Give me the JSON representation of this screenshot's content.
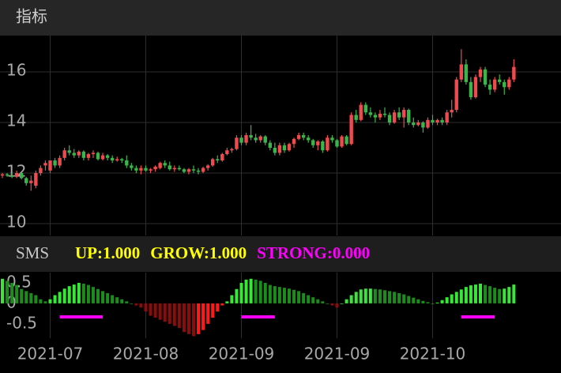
{
  "chart_data": {
    "type": "candlestick",
    "title": "指标",
    "ylim": [
      9.53,
      17.44
    ],
    "yticks": [
      10,
      12,
      14,
      16
    ],
    "grid": true,
    "up_color": "#ef4a4e",
    "down_color": "#3bb54a",
    "xticks": [
      {
        "value": 10,
        "label": "2021-07"
      },
      {
        "value": 30,
        "label": "2021-08"
      },
      {
        "value": 50,
        "label": "2021-09"
      },
      {
        "value": 70,
        "label": "2021-09"
      },
      {
        "value": 90,
        "label": "2021-10"
      }
    ],
    "candles": [
      [
        11.9,
        12.0,
        11.8,
        11.95
      ],
      [
        11.95,
        12.0,
        11.85,
        11.9
      ],
      [
        11.9,
        12.0,
        11.8,
        11.85
      ],
      [
        11.85,
        12.1,
        11.8,
        12.0
      ],
      [
        12.0,
        12.0,
        11.75,
        11.8
      ],
      [
        11.8,
        11.85,
        11.5,
        11.6
      ],
      [
        11.6,
        11.9,
        11.3,
        11.7
      ],
      [
        11.5,
        12.1,
        11.4,
        12.0
      ],
      [
        12.0,
        12.3,
        11.9,
        12.2
      ],
      [
        12.3,
        12.5,
        12.1,
        12.4
      ],
      [
        12.1,
        12.5,
        12.0,
        12.5
      ],
      [
        12.5,
        12.6,
        12.2,
        12.3
      ],
      [
        12.3,
        12.7,
        12.2,
        12.6
      ],
      [
        12.6,
        13.0,
        12.5,
        12.9
      ],
      [
        12.9,
        13.1,
        12.7,
        12.8
      ],
      [
        12.8,
        12.95,
        12.6,
        12.7
      ],
      [
        12.7,
        12.9,
        12.6,
        12.85
      ],
      [
        12.85,
        12.9,
        12.5,
        12.6
      ],
      [
        12.6,
        12.8,
        12.5,
        12.75
      ],
      [
        12.75,
        12.9,
        12.6,
        12.8
      ],
      [
        12.8,
        12.85,
        12.5,
        12.55
      ],
      [
        12.55,
        12.8,
        12.5,
        12.7
      ],
      [
        12.7,
        12.75,
        12.5,
        12.6
      ],
      [
        12.6,
        12.7,
        12.4,
        12.5
      ],
      [
        12.5,
        12.65,
        12.45,
        12.55
      ],
      [
        12.55,
        12.6,
        12.4,
        12.5
      ],
      [
        12.5,
        12.7,
        12.2,
        12.3
      ],
      [
        12.3,
        12.4,
        12.1,
        12.2
      ],
      [
        12.2,
        12.3,
        12.0,
        12.1
      ],
      [
        12.1,
        12.3,
        11.95,
        12.2
      ],
      [
        12.2,
        12.3,
        12.05,
        12.1
      ],
      [
        12.1,
        12.2,
        12.0,
        12.15
      ],
      [
        12.15,
        12.3,
        12.05,
        12.25
      ],
      [
        12.2,
        12.45,
        12.15,
        12.4
      ],
      [
        12.4,
        12.5,
        12.2,
        12.3
      ],
      [
        12.3,
        12.45,
        12.1,
        12.15
      ],
      [
        12.15,
        12.3,
        12.05,
        12.2
      ],
      [
        12.2,
        12.3,
        12.1,
        12.15
      ],
      [
        12.15,
        12.2,
        12.0,
        12.05
      ],
      [
        12.05,
        12.2,
        11.95,
        12.15
      ],
      [
        12.15,
        12.3,
        12.0,
        12.1
      ],
      [
        12.1,
        12.2,
        11.95,
        12.05
      ],
      [
        12.05,
        12.25,
        12.0,
        12.2
      ],
      [
        12.2,
        12.35,
        12.1,
        12.3
      ],
      [
        12.3,
        12.6,
        12.25,
        12.55
      ],
      [
        12.55,
        12.7,
        12.4,
        12.5
      ],
      [
        12.5,
        12.8,
        12.45,
        12.75
      ],
      [
        12.75,
        13.0,
        12.7,
        12.9
      ],
      [
        12.9,
        13.0,
        12.8,
        12.95
      ],
      [
        12.95,
        13.5,
        12.9,
        13.4
      ],
      [
        13.4,
        13.5,
        13.1,
        13.2
      ],
      [
        13.2,
        13.6,
        13.1,
        13.5
      ],
      [
        13.5,
        13.9,
        13.3,
        13.4
      ],
      [
        13.4,
        13.55,
        13.2,
        13.3
      ],
      [
        13.3,
        13.5,
        13.2,
        13.45
      ],
      [
        13.45,
        13.5,
        13.1,
        13.2
      ],
      [
        13.2,
        13.3,
        12.9,
        13.0
      ],
      [
        13.0,
        13.2,
        12.7,
        12.8
      ],
      [
        12.8,
        13.2,
        12.7,
        13.1
      ],
      [
        13.1,
        13.2,
        12.8,
        12.9
      ],
      [
        12.9,
        13.2,
        12.85,
        13.15
      ],
      [
        13.15,
        13.4,
        13.0,
        13.35
      ],
      [
        13.35,
        13.6,
        13.3,
        13.5
      ],
      [
        13.5,
        13.6,
        13.3,
        13.4
      ],
      [
        13.4,
        13.5,
        13.2,
        13.3
      ],
      [
        13.3,
        13.35,
        13.0,
        13.1
      ],
      [
        13.1,
        13.3,
        12.9,
        13.25
      ],
      [
        13.25,
        13.3,
        12.8,
        12.9
      ],
      [
        12.9,
        13.5,
        12.85,
        13.4
      ],
      [
        13.4,
        13.5,
        13.2,
        13.3
      ],
      [
        13.3,
        13.35,
        13.0,
        13.05
      ],
      [
        13.05,
        13.5,
        13.0,
        13.45
      ],
      [
        13.45,
        13.5,
        13.1,
        13.15
      ],
      [
        13.15,
        14.4,
        13.1,
        14.3
      ],
      [
        14.3,
        14.5,
        14.0,
        14.1
      ],
      [
        14.1,
        14.8,
        14.05,
        14.7
      ],
      [
        14.7,
        14.8,
        14.3,
        14.4
      ],
      [
        14.4,
        14.6,
        14.2,
        14.3
      ],
      [
        14.3,
        14.4,
        14.0,
        14.2
      ],
      [
        14.2,
        14.5,
        14.1,
        14.35
      ],
      [
        14.35,
        14.6,
        14.2,
        14.3
      ],
      [
        14.3,
        14.4,
        13.9,
        14.0
      ],
      [
        14.0,
        14.5,
        13.95,
        14.4
      ],
      [
        14.4,
        14.6,
        14.1,
        14.2
      ],
      [
        14.2,
        14.6,
        13.8,
        14.5
      ],
      [
        14.5,
        14.55,
        13.9,
        14.0
      ],
      [
        14.0,
        14.2,
        13.8,
        13.9
      ],
      [
        13.9,
        14.1,
        13.85,
        14.0
      ],
      [
        14.0,
        14.05,
        13.6,
        13.8
      ],
      [
        13.8,
        14.2,
        13.75,
        14.1
      ],
      [
        14.1,
        14.3,
        13.9,
        14.0
      ],
      [
        14.0,
        14.15,
        13.9,
        14.1
      ],
      [
        14.1,
        14.2,
        13.9,
        14.0
      ],
      [
        14.0,
        14.5,
        13.9,
        14.4
      ],
      [
        14.4,
        14.9,
        14.2,
        14.5
      ],
      [
        14.5,
        15.8,
        14.4,
        15.7
      ],
      [
        15.7,
        16.9,
        15.6,
        16.3
      ],
      [
        16.3,
        16.5,
        15.5,
        15.6
      ],
      [
        15.6,
        15.8,
        14.9,
        15.0
      ],
      [
        15.0,
        15.9,
        14.95,
        15.8
      ],
      [
        15.8,
        16.2,
        15.6,
        16.1
      ],
      [
        16.1,
        16.2,
        15.4,
        15.5
      ],
      [
        15.5,
        15.7,
        15.1,
        15.3
      ],
      [
        15.3,
        15.8,
        15.2,
        15.7
      ],
      [
        15.7,
        15.9,
        15.5,
        15.6
      ],
      [
        15.6,
        15.7,
        15.1,
        15.4
      ],
      [
        15.4,
        15.8,
        15.3,
        15.7
      ],
      [
        15.7,
        16.5,
        15.6,
        16.2
      ]
    ],
    "indicator": {
      "name": "SMS",
      "readouts": [
        {
          "text": "UP:1.000",
          "color": "#ffff00"
        },
        {
          "text": "GROW:1.000",
          "color": "#ffff00"
        },
        {
          "text": "STRONG:0.000",
          "color": "#ff00ff"
        }
      ],
      "ylim": [
        -0.85,
        0.75
      ],
      "yticks": [
        0.5,
        0,
        -0.5
      ],
      "rise_color": "#39e639",
      "fall_color": "#1c8c1c",
      "neg_rise_color": "#ff1a1a",
      "neg_fall_color": "#8c0c0c",
      "values": [
        0.6,
        0.55,
        0.5,
        0.45,
        0.35,
        0.3,
        0.25,
        0.2,
        0.1,
        0.05,
        0.1,
        0.2,
        0.28,
        0.36,
        0.42,
        0.46,
        0.5,
        0.48,
        0.45,
        0.4,
        0.35,
        0.3,
        0.25,
        0.2,
        0.15,
        0.1,
        0.05,
        0.0,
        -0.05,
        -0.1,
        -0.2,
        -0.3,
        -0.35,
        -0.4,
        -0.45,
        -0.5,
        -0.55,
        -0.6,
        -0.7,
        -0.75,
        -0.8,
        -0.75,
        -0.65,
        -0.5,
        -0.35,
        -0.2,
        -0.05,
        0.05,
        0.2,
        0.35,
        0.5,
        0.58,
        0.6,
        0.58,
        0.55,
        0.5,
        0.45,
        0.42,
        0.4,
        0.38,
        0.36,
        0.33,
        0.3,
        0.25,
        0.2,
        0.15,
        0.1,
        0.05,
        0.0,
        -0.05,
        -0.1,
        0.0,
        0.1,
        0.2,
        0.28,
        0.34,
        0.36,
        0.36,
        0.35,
        0.34,
        0.32,
        0.3,
        0.28,
        0.25,
        0.22,
        0.18,
        0.14,
        0.1,
        0.06,
        0.03,
        0.0,
        0.02,
        0.08,
        0.15,
        0.22,
        0.28,
        0.34,
        0.4,
        0.44,
        0.46,
        0.48,
        0.45,
        0.42,
        0.38,
        0.35,
        0.36,
        0.4,
        0.46
      ],
      "strong_color": "#ff00ff",
      "strong": [
        null,
        null,
        null,
        null,
        null,
        null,
        null,
        null,
        null,
        null,
        null,
        null,
        -0.33,
        -0.33,
        -0.33,
        -0.33,
        -0.33,
        -0.33,
        -0.33,
        -0.33,
        -0.33,
        -0.33,
        null,
        null,
        null,
        null,
        null,
        null,
        null,
        null,
        null,
        null,
        null,
        null,
        null,
        null,
        null,
        null,
        null,
        null,
        null,
        null,
        null,
        null,
        null,
        null,
        null,
        null,
        null,
        null,
        -0.33,
        -0.33,
        -0.33,
        -0.33,
        -0.33,
        -0.33,
        -0.33,
        -0.33,
        null,
        null,
        null,
        null,
        null,
        null,
        null,
        null,
        null,
        null,
        null,
        null,
        null,
        null,
        null,
        null,
        null,
        null,
        null,
        null,
        null,
        null,
        null,
        null,
        null,
        null,
        null,
        null,
        null,
        null,
        null,
        null,
        null,
        null,
        null,
        null,
        null,
        null,
        -0.33,
        -0.33,
        -0.33,
        -0.33,
        -0.33,
        -0.33,
        -0.33,
        -0.33,
        null,
        null,
        null,
        null
      ]
    }
  }
}
